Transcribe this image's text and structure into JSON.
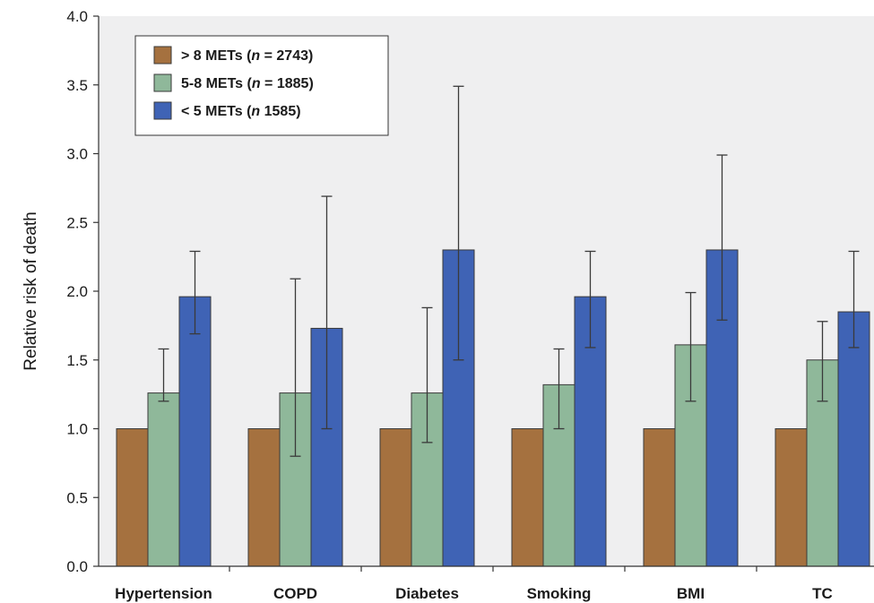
{
  "chart_data": {
    "type": "bar",
    "title": "",
    "xlabel": "",
    "ylabel": "Relative risk of death",
    "ylim": [
      0,
      4.0
    ],
    "yticks": [
      "0.0",
      "0.5",
      "1.0",
      "1.5",
      "2.0",
      "2.5",
      "3.0",
      "3.5",
      "4.0"
    ],
    "categories": [
      "Hypertension",
      "COPD",
      "Diabetes",
      "Smoking",
      "BMI",
      "TC"
    ],
    "series": [
      {
        "name_parts": [
          "> 8 METs (",
          "n",
          " = 2743)"
        ],
        "color": "#a5713f",
        "values": [
          1.0,
          1.0,
          1.0,
          1.0,
          1.0,
          1.0
        ],
        "err_low": [
          null,
          null,
          null,
          null,
          null,
          null
        ],
        "err_high": [
          null,
          null,
          null,
          null,
          null,
          null
        ]
      },
      {
        "name_parts": [
          "5-8 METs (",
          "n",
          " = 1885)"
        ],
        "color": "#8fb89a",
        "values": [
          1.26,
          1.26,
          1.26,
          1.32,
          1.61,
          1.5
        ],
        "err_low": [
          1.2,
          0.8,
          0.9,
          1.0,
          1.2,
          1.2
        ],
        "err_high": [
          1.58,
          2.09,
          1.88,
          1.58,
          1.99,
          1.78
        ]
      },
      {
        "name_parts": [
          "< 5 METs (",
          "n",
          " 1585)"
        ],
        "color": "#3f63b5",
        "values": [
          1.96,
          1.73,
          2.3,
          1.96,
          2.3,
          1.85
        ],
        "err_low": [
          1.69,
          1.0,
          1.5,
          1.59,
          1.79,
          1.59
        ],
        "err_high": [
          2.29,
          2.69,
          3.49,
          2.29,
          2.99,
          2.29
        ]
      }
    ],
    "legend_position": "top-left",
    "plot_background": "#efeff0",
    "grid": false
  }
}
